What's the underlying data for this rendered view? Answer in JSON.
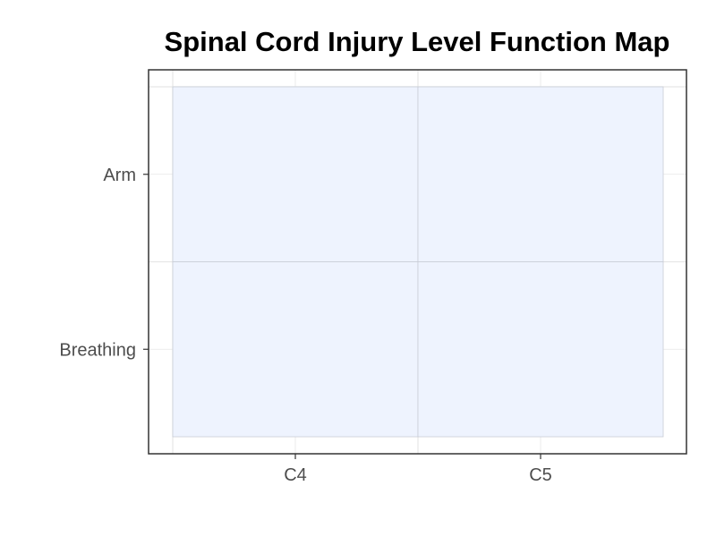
{
  "chart_data": {
    "type": "heatmap",
    "title": "Spinal Cord Injury Level Function Map",
    "xlabel": "",
    "ylabel": "",
    "x_categories": [
      "C4",
      "C5"
    ],
    "y_categories": [
      "Arm",
      "Breathing"
    ],
    "cells": [
      {
        "x": "C4",
        "y": "Arm"
      },
      {
        "x": "C5",
        "y": "Arm"
      },
      {
        "x": "C4",
        "y": "Breathing"
      },
      {
        "x": "C5",
        "y": "Breathing"
      }
    ],
    "grid": true,
    "legend": "none",
    "colors": {
      "tile_fill": "#eef3fe",
      "tile_stroke": "#c8ccd6",
      "grid": "#e6e6e6",
      "panel_border": "#333333",
      "tick_text": "#4d4d4d"
    }
  }
}
